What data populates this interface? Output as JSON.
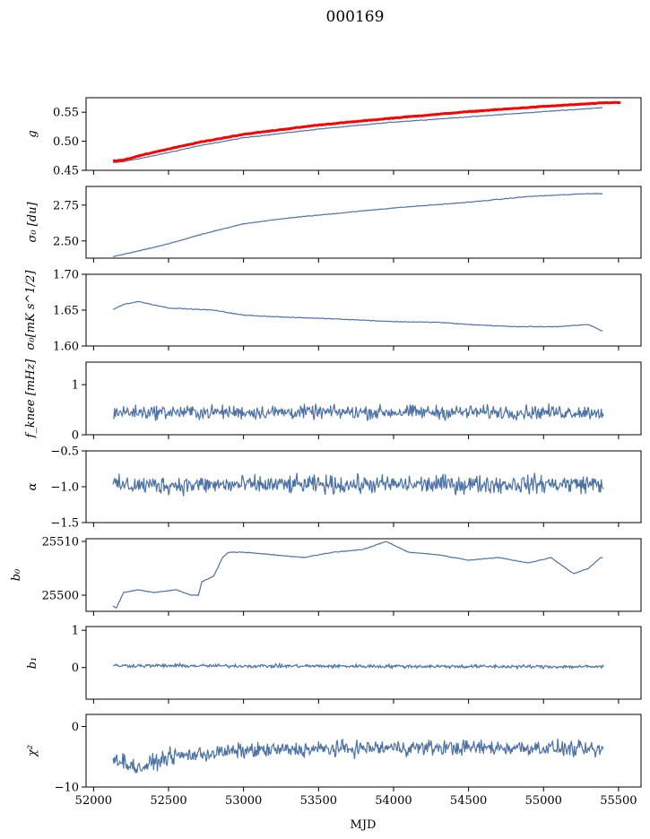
{
  "title": "000169",
  "xlabel": "MJD",
  "x_ticks": [
    52000,
    52500,
    53000,
    53500,
    54000,
    54500,
    55000,
    55500
  ],
  "x_tick_labels": [
    "52000",
    "52500",
    "53000",
    "53500",
    "54000",
    "54500",
    "55000",
    "55500"
  ],
  "colors": {
    "series": "#4c72a6",
    "overlay": "#ff0000",
    "axes": "#000000"
  },
  "chart_data": [
    {
      "type": "line",
      "id": "g",
      "ylabel": "g",
      "xlim": [
        51950,
        55650
      ],
      "ylim": [
        0.45,
        0.575
      ],
      "y_ticks": [
        0.45,
        0.5,
        0.55
      ],
      "y_tick_labels": [
        "0.45",
        "0.50",
        "0.55"
      ],
      "series": [
        {
          "color": "#4c72a6",
          "points": [
            [
              52130,
              0.463
            ],
            [
              52200,
              0.465
            ],
            [
              52400,
              0.475
            ],
            [
              52700,
              0.492
            ],
            [
              53000,
              0.506
            ],
            [
              53500,
              0.521
            ],
            [
              54000,
              0.533
            ],
            [
              54500,
              0.542
            ],
            [
              55000,
              0.551
            ],
            [
              55400,
              0.558
            ]
          ]
        },
        {
          "color": "#ff0000",
          "width": 3,
          "points": [
            [
              52130,
              0.466
            ],
            [
              52200,
              0.468
            ],
            [
              52400,
              0.481
            ],
            [
              52700,
              0.498
            ],
            [
              53000,
              0.512
            ],
            [
              53500,
              0.528
            ],
            [
              54000,
              0.54
            ],
            [
              54500,
              0.551
            ],
            [
              55000,
              0.56
            ],
            [
              55400,
              0.566
            ],
            [
              55520,
              0.567
            ]
          ]
        }
      ]
    },
    {
      "type": "line",
      "id": "sigma0_du",
      "ylabel": "σ₀ [du]",
      "xlim": [
        51950,
        55650
      ],
      "ylim": [
        2.38,
        2.88
      ],
      "y_ticks": [
        2.5,
        2.75
      ],
      "y_tick_labels": [
        "2.50",
        "2.75"
      ],
      "series": [
        {
          "color": "#4c72a6",
          "points": [
            [
              52130,
              2.39
            ],
            [
              52300,
              2.43
            ],
            [
              52500,
              2.48
            ],
            [
              52700,
              2.54
            ],
            [
              53000,
              2.62
            ],
            [
              53300,
              2.66
            ],
            [
              53500,
              2.68
            ],
            [
              53800,
              2.71
            ],
            [
              54000,
              2.73
            ],
            [
              54500,
              2.77
            ],
            [
              54900,
              2.81
            ],
            [
              55300,
              2.83
            ],
            [
              55400,
              2.83
            ]
          ]
        }
      ]
    },
    {
      "type": "line",
      "id": "sigma0_mk",
      "ylabel": "σ₀[mK s^1/2]",
      "xlim": [
        51950,
        55650
      ],
      "ylim": [
        1.6,
        1.7
      ],
      "y_ticks": [
        1.6,
        1.65,
        1.7
      ],
      "y_tick_labels": [
        "1.60",
        "1.65",
        "1.70"
      ],
      "series": [
        {
          "color": "#4c72a6",
          "points": [
            [
              52130,
              1.651
            ],
            [
              52200,
              1.658
            ],
            [
              52300,
              1.662
            ],
            [
              52500,
              1.653
            ],
            [
              52800,
              1.65
            ],
            [
              53000,
              1.643
            ],
            [
              53300,
              1.64
            ],
            [
              53600,
              1.638
            ],
            [
              54000,
              1.634
            ],
            [
              54300,
              1.633
            ],
            [
              54500,
              1.63
            ],
            [
              54800,
              1.627
            ],
            [
              55100,
              1.627
            ],
            [
              55300,
              1.63
            ],
            [
              55400,
              1.62
            ]
          ]
        }
      ]
    },
    {
      "type": "line",
      "id": "fknee",
      "ylabel": "f_knee [mHz]",
      "xlim": [
        51950,
        55650
      ],
      "ylim": [
        0,
        1.45
      ],
      "y_ticks": [
        0,
        1
      ],
      "y_tick_labels": [
        "0",
        "1"
      ],
      "series": [
        {
          "color": "#4c72a6",
          "mean": 0.45,
          "spread": 0.12,
          "points": [
            [
              52130,
              0.45
            ],
            [
              55400,
              0.45
            ]
          ]
        }
      ]
    },
    {
      "type": "line",
      "id": "alpha",
      "ylabel": "α",
      "xlim": [
        51950,
        55650
      ],
      "ylim": [
        -1.5,
        -0.5
      ],
      "y_ticks": [
        -1.5,
        -1.0,
        -0.5
      ],
      "y_tick_labels": [
        "−1.5",
        "−1.0",
        "−0.5"
      ],
      "series": [
        {
          "color": "#4c72a6",
          "mean": -0.98,
          "spread": 0.11,
          "points": [
            [
              52130,
              -0.98
            ],
            [
              55400,
              -0.96
            ]
          ]
        }
      ]
    },
    {
      "type": "line",
      "id": "b0",
      "ylabel": "b₀",
      "xlim": [
        51950,
        55650
      ],
      "ylim": [
        25497,
        25510.5
      ],
      "y_ticks": [
        25500,
        25510
      ],
      "y_tick_labels": [
        "25500",
        "25510"
      ],
      "series": [
        {
          "color": "#4c72a6",
          "points": [
            [
              52130,
              25498
            ],
            [
              52150,
              25497.5
            ],
            [
              52200,
              25500.5
            ],
            [
              52300,
              25501
            ],
            [
              52400,
              25500.5
            ],
            [
              52550,
              25501
            ],
            [
              52650,
              25500
            ],
            [
              52700,
              25500
            ],
            [
              52720,
              25502.5
            ],
            [
              52800,
              25503.5
            ],
            [
              52860,
              25507
            ],
            [
              52900,
              25508
            ],
            [
              53000,
              25508
            ],
            [
              53200,
              25507.5
            ],
            [
              53400,
              25507
            ],
            [
              53600,
              25508
            ],
            [
              53800,
              25508.5
            ],
            [
              53950,
              25510
            ],
            [
              54100,
              25508
            ],
            [
              54300,
              25507.5
            ],
            [
              54500,
              25506.5
            ],
            [
              54700,
              25507
            ],
            [
              54900,
              25506
            ],
            [
              55050,
              25507
            ],
            [
              55100,
              25506
            ],
            [
              55200,
              25504
            ],
            [
              55300,
              25505
            ],
            [
              55380,
              25507
            ],
            [
              55400,
              25507
            ]
          ]
        }
      ]
    },
    {
      "type": "line",
      "id": "b1",
      "ylabel": "b₁",
      "xlim": [
        51950,
        55650
      ],
      "ylim": [
        -0.85,
        1.1
      ],
      "y_ticks": [
        0,
        1
      ],
      "y_tick_labels": [
        "0",
        "1"
      ],
      "series": [
        {
          "color": "#4c72a6",
          "mean": 0.02,
          "spread": 0.04,
          "points": [
            [
              52130,
              0.05
            ],
            [
              55400,
              0.02
            ]
          ]
        }
      ]
    },
    {
      "type": "line",
      "id": "chi2",
      "ylabel": "χ²",
      "xlim": [
        51950,
        55650
      ],
      "ylim": [
        -10,
        2
      ],
      "y_ticks": [
        -10,
        0
      ],
      "y_tick_labels": [
        "−10",
        "0"
      ],
      "series": [
        {
          "color": "#4c72a6",
          "mean": -4.2,
          "spread": 1.1,
          "points": [
            [
              52130,
              -5
            ],
            [
              52300,
              -7
            ],
            [
              52500,
              -5
            ],
            [
              53000,
              -4
            ],
            [
              54000,
              -3.5
            ],
            [
              55000,
              -3.5
            ],
            [
              55400,
              -4
            ]
          ]
        }
      ]
    }
  ]
}
